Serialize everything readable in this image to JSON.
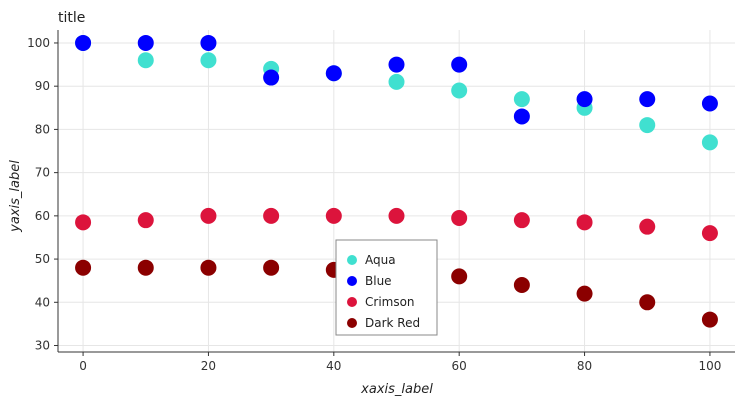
{
  "chart_data": {
    "type": "scatter",
    "title": "title",
    "xlabel": "xaxis_label",
    "ylabel": "yaxis_label",
    "xlim": [
      -4,
      104
    ],
    "ylim": [
      28.5,
      103
    ],
    "x_ticks": [
      0,
      20,
      40,
      60,
      80,
      100
    ],
    "y_ticks": [
      30,
      40,
      50,
      60,
      70,
      80,
      90,
      100
    ],
    "grid": true,
    "legend_position": "bottom-center",
    "x": [
      0,
      10,
      20,
      30,
      40,
      50,
      60,
      70,
      80,
      90,
      100
    ],
    "series": [
      {
        "name": "Aqua",
        "color": "#40E0D0",
        "values": [
          100,
          96,
          96,
          94,
          93,
          91,
          89,
          87,
          85,
          81,
          77
        ]
      },
      {
        "name": "Blue",
        "color": "#0000FF",
        "values": [
          100,
          100,
          100,
          92,
          93,
          95,
          95,
          83,
          87,
          87,
          86
        ]
      },
      {
        "name": "Crimson",
        "color": "#DC143C",
        "values": [
          58.5,
          59,
          60,
          60,
          60,
          60,
          59.5,
          59,
          58.5,
          57.5,
          56
        ]
      },
      {
        "name": "Dark Red",
        "color": "#8B0000",
        "values": [
          48,
          48,
          48,
          48,
          47.5,
          47.5,
          46,
          44,
          42,
          40,
          36
        ]
      }
    ]
  }
}
